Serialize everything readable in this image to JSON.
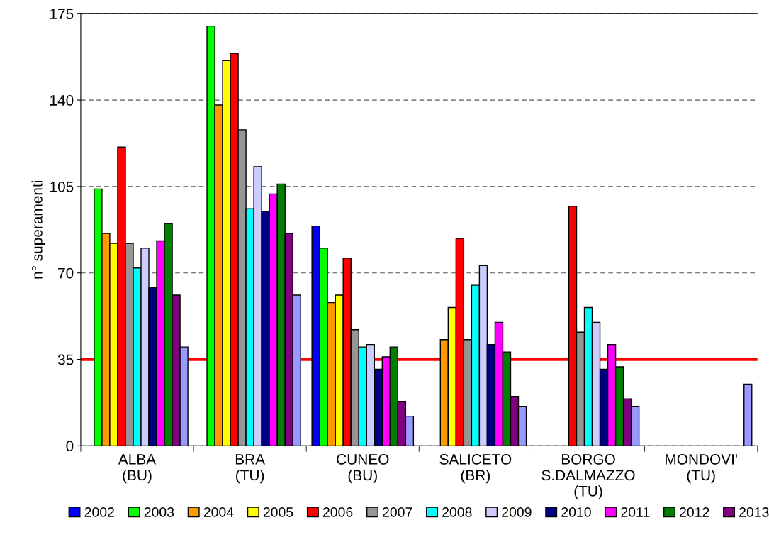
{
  "chart_data": {
    "type": "bar",
    "ylabel": "n° superamenti",
    "categories": [
      "ALBA\n(BU)",
      "BRA\n(TU)",
      "CUNEO\n(BU)",
      "SALICETO\n(BR)",
      "BORGO\nS.DALMAZZO\n(TU)",
      "MONDOVI'\n(TU)"
    ],
    "series": [
      {
        "name": "2002",
        "color": "#0000ff",
        "values": [
          null,
          null,
          89,
          null,
          null,
          null
        ]
      },
      {
        "name": "2003",
        "color": "#00ff00",
        "values": [
          104,
          170,
          80,
          null,
          null,
          null
        ]
      },
      {
        "name": "2004",
        "color": "#ff9900",
        "values": [
          86,
          138,
          58,
          43,
          null,
          null
        ]
      },
      {
        "name": "2005",
        "color": "#ffff00",
        "values": [
          82,
          156,
          61,
          56,
          null,
          null
        ]
      },
      {
        "name": "2006",
        "color": "#ff0000",
        "values": [
          121,
          159,
          76,
          84,
          97,
          null
        ]
      },
      {
        "name": "2007",
        "color": "#969696",
        "values": [
          82,
          128,
          47,
          43,
          46,
          null
        ]
      },
      {
        "name": "2008",
        "color": "#00ffff",
        "values": [
          72,
          96,
          40,
          65,
          56,
          null
        ]
      },
      {
        "name": "2009",
        "color": "#ccccff",
        "values": [
          80,
          113,
          41,
          73,
          50,
          null
        ]
      },
      {
        "name": "2010",
        "color": "#000080",
        "values": [
          64,
          95,
          31,
          41,
          31,
          null
        ]
      },
      {
        "name": "2011",
        "color": "#ff00ff",
        "values": [
          83,
          102,
          36,
          50,
          41,
          null
        ]
      },
      {
        "name": "2012",
        "color": "#008000",
        "values": [
          90,
          106,
          40,
          38,
          32,
          null
        ]
      },
      {
        "name": "2013",
        "color": "#800080",
        "values": [
          61,
          86,
          18,
          20,
          19,
          null
        ]
      },
      {
        "color": "#9999ff",
        "values": [
          40,
          61,
          12,
          16,
          16,
          25
        ]
      }
    ],
    "ylim": [
      0,
      175
    ],
    "yticks": [
      0,
      35,
      70,
      105,
      140,
      175
    ],
    "ref_lines": [
      {
        "axis": "y",
        "value": 35,
        "color": "#ff0000"
      }
    ],
    "grid": "y",
    "legend": "bottom"
  }
}
